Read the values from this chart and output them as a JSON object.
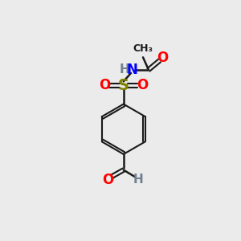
{
  "background_color": "#ebebeb",
  "bond_color": "#1a1a1a",
  "N_color": "#0000ff",
  "O_color": "#ff0000",
  "S_color": "#808000",
  "H_color": "#708090",
  "fig_size": [
    3.0,
    3.0
  ],
  "dpi": 100,
  "xlim": [
    0,
    10
  ],
  "ylim": [
    0,
    10
  ]
}
